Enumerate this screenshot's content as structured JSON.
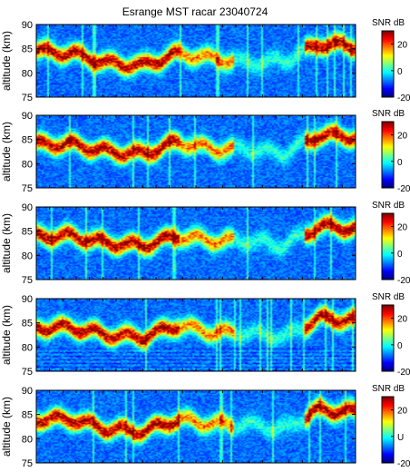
{
  "figure": {
    "title": "Esrange MST racar 23040724"
  },
  "chart_data": [
    {
      "type": "heatmap",
      "title": "Esrange MST racar 23040724",
      "ylabel": "altitude (km)",
      "xlabel": "",
      "ylim": [
        75,
        90
      ],
      "yticks": [
        "90",
        "85",
        "80",
        "75"
      ],
      "colorbar": {
        "label": "SNR dB",
        "range": [
          -20,
          30
        ],
        "ticks": [
          "20",
          "0",
          "-20"
        ]
      },
      "grid": false,
      "layer_center_km": [
        84.5,
        84,
        82,
        81.5,
        84,
        83,
        82,
        82.5,
        86,
        85.5
      ]
    },
    {
      "type": "heatmap",
      "title": "",
      "ylabel": "altitude (km)",
      "xlabel": "",
      "ylim": [
        75,
        90
      ],
      "yticks": [
        "90",
        "85",
        "80",
        "75"
      ],
      "colorbar": {
        "label": "SNR dB",
        "range": [
          -20,
          30
        ],
        "ticks": [
          "20",
          "0",
          "-20"
        ]
      },
      "grid": false,
      "layer_center_km": [
        84,
        84,
        82.5,
        82,
        84.5,
        83,
        83,
        82,
        86,
        85.5
      ]
    },
    {
      "type": "heatmap",
      "title": "",
      "ylabel": "altitude (km)",
      "xlabel": "",
      "ylim": [
        75,
        90
      ],
      "yticks": [
        "90",
        "85",
        "80",
        "75"
      ],
      "colorbar": {
        "label": "SNR dB",
        "range": [
          -20,
          30
        ],
        "ticks": [
          "20",
          "0",
          "-20"
        ]
      },
      "grid": false,
      "layer_center_km": [
        84,
        84,
        82.5,
        82,
        84,
        83,
        83,
        82,
        86,
        85.5
      ]
    },
    {
      "type": "heatmap",
      "title": "",
      "ylabel": "altitude (km)",
      "xlabel": "",
      "ylim": [
        75,
        90
      ],
      "yticks": [
        "90",
        "85",
        "80",
        "75"
      ],
      "colorbar": {
        "label": "SNR dB",
        "range": [
          -20,
          30
        ],
        "ticks": [
          "20",
          "0",
          "-20"
        ]
      },
      "grid": false,
      "layer_center_km": [
        84,
        84,
        82.5,
        82,
        84.5,
        83,
        83,
        82,
        86,
        85.5
      ]
    },
    {
      "type": "heatmap",
      "title": "",
      "ylabel": "altitude (km)",
      "xlabel": "",
      "ylim": [
        75,
        90
      ],
      "yticks": [
        "90",
        "85",
        "80",
        "75"
      ],
      "colorbar": {
        "label": "SNR dB",
        "range": [
          -20,
          30
        ],
        "ticks": [
          "20",
          "U",
          "-20"
        ]
      },
      "grid": false,
      "layer_center_km": [
        84,
        84,
        82,
        81.5,
        84,
        83,
        83,
        82,
        86,
        85.5
      ]
    }
  ]
}
